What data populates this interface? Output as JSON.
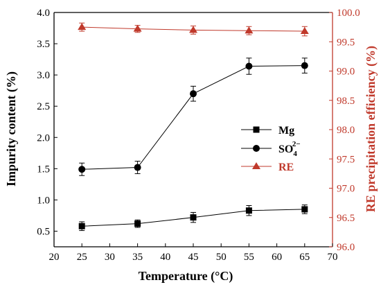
{
  "chart_data": {
    "type": "line",
    "x": [
      25,
      35,
      45,
      55,
      65
    ],
    "xlabel": "Temperature (°C)",
    "xlim": [
      20,
      70
    ],
    "xticks": [
      "20",
      "25",
      "30",
      "35",
      "40",
      "45",
      "50",
      "55",
      "60",
      "65",
      "70"
    ],
    "y_left": {
      "label": "Impurity content (%)",
      "lim": [
        0.25,
        4.0
      ],
      "ticks": [
        "0.5",
        "1.0",
        "1.5",
        "2.0",
        "2.5",
        "3.0",
        "3.5",
        "4.0"
      ]
    },
    "y_right": {
      "label": "RE precipitation efficiency (%)",
      "lim": [
        96.0,
        100.0
      ],
      "ticks": [
        "96.0",
        "96.5",
        "97.0",
        "97.5",
        "98.0",
        "98.5",
        "99.0",
        "99.5",
        "100.0"
      ],
      "color": "#c0392b"
    },
    "series": [
      {
        "name": "Mg",
        "axis": "left",
        "marker": "square",
        "color": "#000000",
        "values": [
          0.58,
          0.62,
          0.72,
          0.83,
          0.85
        ],
        "errors": [
          0.07,
          0.06,
          0.08,
          0.08,
          0.07
        ]
      },
      {
        "name": "SO₄²⁻",
        "name_base": "SO",
        "name_sub": "4",
        "name_sup": "2−",
        "axis": "left",
        "marker": "circle",
        "color": "#000000",
        "values": [
          1.49,
          1.52,
          2.7,
          3.14,
          3.15
        ],
        "errors": [
          0.1,
          0.1,
          0.12,
          0.13,
          0.12
        ]
      },
      {
        "name": "RE",
        "axis": "right",
        "marker": "triangle",
        "color": "#c0392b",
        "values": [
          99.75,
          99.72,
          99.7,
          99.69,
          99.68
        ],
        "errors": [
          0.07,
          0.06,
          0.07,
          0.07,
          0.08
        ]
      }
    ],
    "legend_position": "center-right"
  }
}
